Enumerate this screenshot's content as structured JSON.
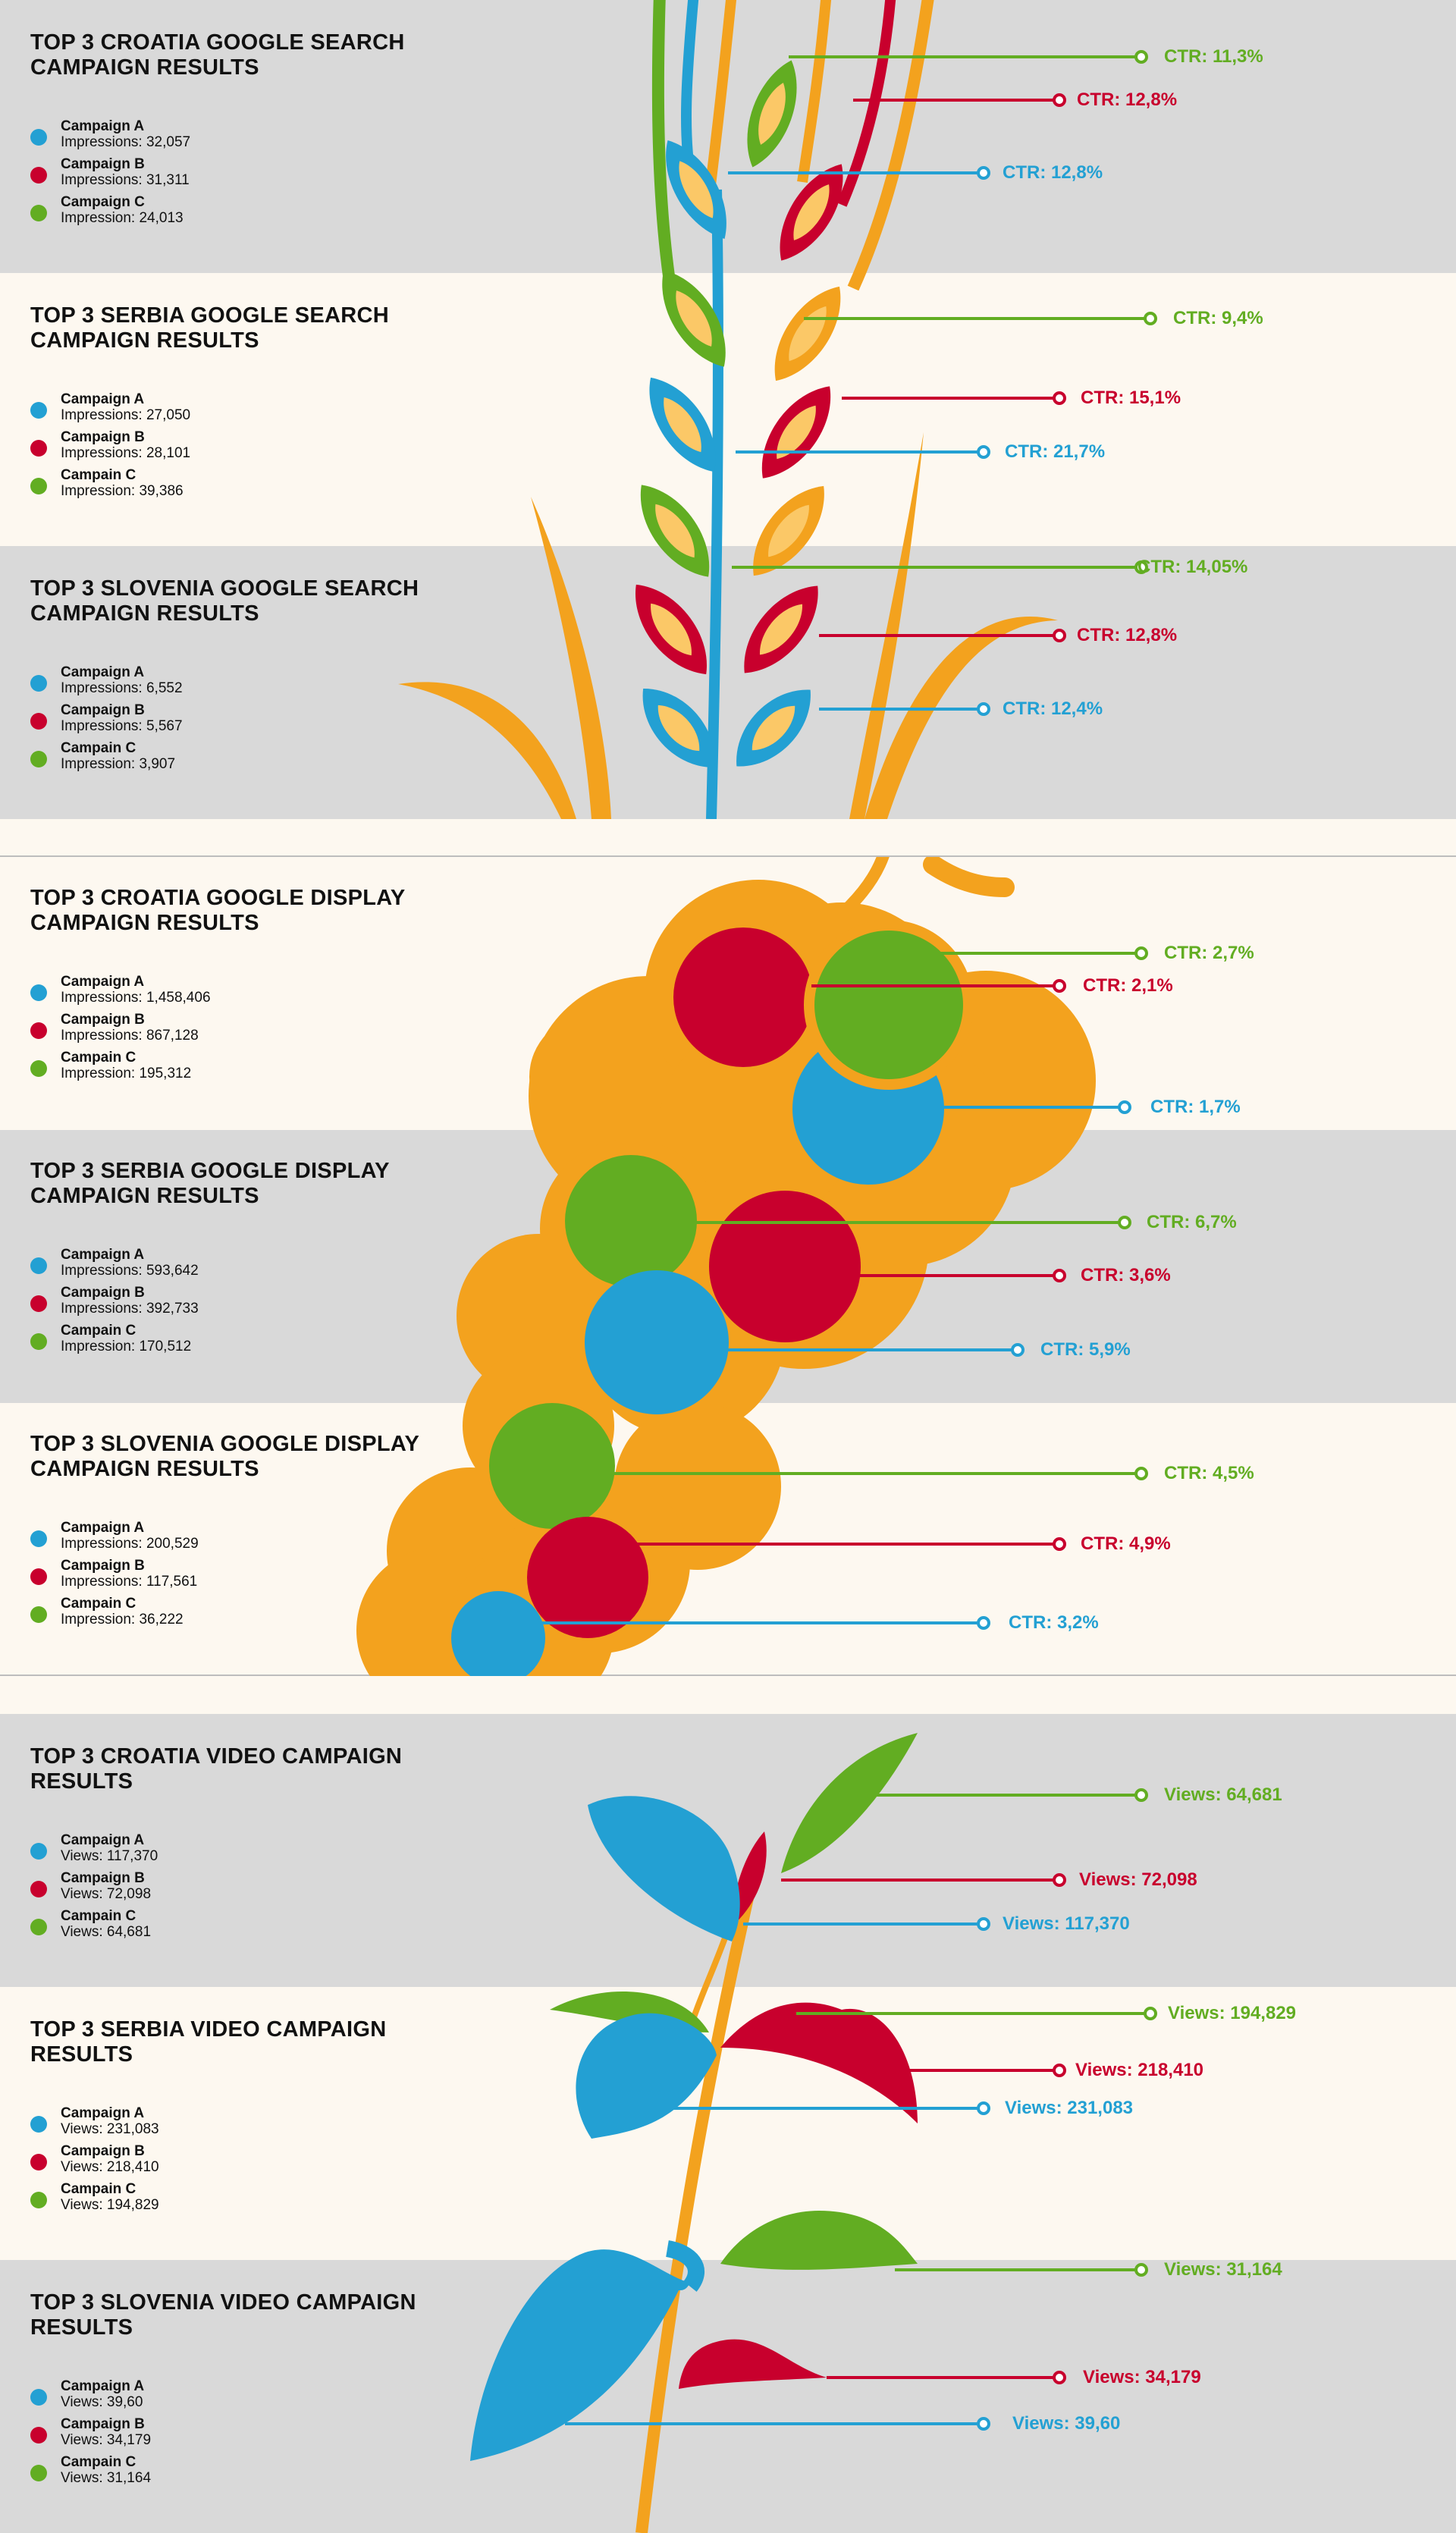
{
  "colors": {
    "blue": "#23a0d3",
    "red": "#c8002d",
    "green": "#62ad22",
    "orange": "#f3a21e",
    "light_orange": "#fbc867",
    "gray_band": "#d9d9d9",
    "cream_band": "#fdf8f0"
  },
  "sections": [
    {
      "id": "search",
      "illustration": "wheat",
      "panels": [
        {
          "title": "TOP 3 CROATIA GOOGLE SEARCH CAMPAIGN RESULTS",
          "campaigns": [
            {
              "name": "Campaign A",
              "value_label": "Impressions: 32,057",
              "color": "blue"
            },
            {
              "name": "Campaign B",
              "value_label": "Impressions: 31,311",
              "color": "red"
            },
            {
              "name": "Campaign C",
              "value_label": "Impression: 24,013",
              "color": "green"
            }
          ],
          "callouts": [
            {
              "label": "CTR: 11,3%",
              "color": "green"
            },
            {
              "label": "CTR: 12,8%",
              "color": "red"
            },
            {
              "label": "CTR: 12,8%",
              "color": "blue"
            }
          ]
        },
        {
          "title": "TOP 3 SERBIA GOOGLE SEARCH CAMPAIGN RESULTS",
          "campaigns": [
            {
              "name": "Campaign A",
              "value_label": "Impressions: 27,050",
              "color": "blue"
            },
            {
              "name": "Campaign B",
              "value_label": "Impressions: 28,101",
              "color": "red"
            },
            {
              "name": "Campain C",
              "value_label": "Impression: 39,386",
              "color": "green"
            }
          ],
          "callouts": [
            {
              "label": "CTR: 9,4%",
              "color": "green"
            },
            {
              "label": "CTR: 15,1%",
              "color": "red"
            },
            {
              "label": "CTR: 21,7%",
              "color": "blue"
            }
          ]
        },
        {
          "title": "TOP 3 SLOVENIA GOOGLE SEARCH CAMPAIGN RESULTS",
          "campaigns": [
            {
              "name": "Campaign A",
              "value_label": "Impressions: 6,552",
              "color": "blue"
            },
            {
              "name": "Campaign B",
              "value_label": "Impressions: 5,567",
              "color": "red"
            },
            {
              "name": "Campain C",
              "value_label": "Impression: 3,907",
              "color": "green"
            }
          ],
          "callouts": [
            {
              "label": "CTR: 14,05%",
              "color": "green"
            },
            {
              "label": "CTR: 12,8%",
              "color": "red"
            },
            {
              "label": "CTR: 12,4%",
              "color": "blue"
            }
          ]
        }
      ]
    },
    {
      "id": "display",
      "illustration": "grapes",
      "panels": [
        {
          "title": "TOP 3 CROATIA GOOGLE DISPLAY CAMPAIGN RESULTS",
          "campaigns": [
            {
              "name": "Campaign A",
              "value_label": "Impressions:  1,458,406",
              "color": "blue"
            },
            {
              "name": "Campaign B",
              "value_label": "Impressions: 867,128",
              "color": "red"
            },
            {
              "name": "Campain C",
              "value_label": "Impression: 195,312",
              "color": "green"
            }
          ],
          "callouts": [
            {
              "label": "CTR: 2,7%",
              "color": "green"
            },
            {
              "label": "CTR: 2,1%",
              "color": "red"
            },
            {
              "label": "CTR: 1,7%",
              "color": "blue"
            }
          ]
        },
        {
          "title": "TOP 3 SERBIA GOOGLE DISPLAY CAMPAIGN RESULTS",
          "campaigns": [
            {
              "name": "Campaign A",
              "value_label": "Impressions: 593,642",
              "color": "blue"
            },
            {
              "name": "Campaign B",
              "value_label": "Impressions: 392,733",
              "color": "red"
            },
            {
              "name": "Campain C",
              "value_label": "Impression:  170,512",
              "color": "green"
            }
          ],
          "callouts": [
            {
              "label": "CTR: 6,7%",
              "color": "green"
            },
            {
              "label": "CTR: 3,6%",
              "color": "red"
            },
            {
              "label": "CTR: 5,9%",
              "color": "blue"
            }
          ]
        },
        {
          "title": "TOP 3 SLOVENIA GOOGLE DISPLAY CAMPAIGN RESULTS",
          "campaigns": [
            {
              "name": "Campaign A",
              "value_label": "Impressions: 200,529",
              "color": "blue"
            },
            {
              "name": "Campaign B",
              "value_label": "Impressions: 117,561",
              "color": "red"
            },
            {
              "name": "Campain C",
              "value_label": "Impression: 36,222",
              "color": "green"
            }
          ],
          "callouts": [
            {
              "label": "CTR: 4,5%",
              "color": "green"
            },
            {
              "label": "CTR: 4,9%",
              "color": "red"
            },
            {
              "label": "CTR: 3,2%",
              "color": "blue"
            }
          ]
        }
      ]
    },
    {
      "id": "video",
      "illustration": "plant",
      "panels": [
        {
          "title": "TOP 3 CROATIA VIDEO CAMPAIGN RESULTS",
          "campaigns": [
            {
              "name": "Campaign A",
              "value_label": "Views: 117,370",
              "color": "blue"
            },
            {
              "name": "Campaign B",
              "value_label": "Views: 72,098",
              "color": "red"
            },
            {
              "name": "Campain C",
              "value_label": "Views: 64,681",
              "color": "green"
            }
          ],
          "callouts": [
            {
              "label": "Views: 64,681",
              "color": "green"
            },
            {
              "label": "Views: 72,098",
              "color": "red"
            },
            {
              "label": "Views: 117,370",
              "color": "blue"
            }
          ]
        },
        {
          "title": "TOP 3 SERBIA VIDEO CAMPAIGN RESULTS",
          "campaigns": [
            {
              "name": "Campaign A",
              "value_label": "Views: 231,083",
              "color": "blue"
            },
            {
              "name": "Campaign B",
              "value_label": "Views: 218,410",
              "color": "red"
            },
            {
              "name": "Campain C",
              "value_label": "Views: 194,829",
              "color": "green"
            }
          ],
          "callouts": [
            {
              "label": "Views: 194,829",
              "color": "green"
            },
            {
              "label": "Views: 218,410",
              "color": "red"
            },
            {
              "label": "Views: 231,083",
              "color": "blue"
            }
          ]
        },
        {
          "title": "TOP 3 SLOVENIA VIDEO CAMPAIGN RESULTS",
          "campaigns": [
            {
              "name": "Campaign A",
              "value_label": "Views: 39,60",
              "color": "blue"
            },
            {
              "name": "Campaign B",
              "value_label": "Views: 34,179",
              "color": "red"
            },
            {
              "name": "Campain C",
              "value_label": "Views: 31,164",
              "color": "green"
            }
          ],
          "callouts": [
            {
              "label": "Views: 31,164",
              "color": "green"
            },
            {
              "label": "Views: 34,179",
              "color": "red"
            },
            {
              "label": "Views: 39,60",
              "color": "blue"
            }
          ]
        }
      ]
    }
  ],
  "chart_data": [
    {
      "type": "table",
      "title": "TOP 3 CROATIA GOOGLE SEARCH CAMPAIGN RESULTS",
      "categories": [
        "Campaign A",
        "Campaign B",
        "Campaign C"
      ],
      "series": [
        {
          "name": "Impressions",
          "values": [
            32057,
            31311,
            24013
          ]
        },
        {
          "name": "CTR",
          "values": [
            12.8,
            12.8,
            11.3
          ]
        }
      ]
    },
    {
      "type": "table",
      "title": "TOP 3 SERBIA GOOGLE SEARCH CAMPAIGN RESULTS",
      "categories": [
        "Campaign A",
        "Campaign B",
        "Campain C"
      ],
      "series": [
        {
          "name": "Impressions",
          "values": [
            27050,
            28101,
            39386
          ]
        },
        {
          "name": "CTR",
          "values": [
            21.7,
            15.1,
            9.4
          ]
        }
      ]
    },
    {
      "type": "table",
      "title": "TOP 3 SLOVENIA GOOGLE SEARCH CAMPAIGN RESULTS",
      "categories": [
        "Campaign A",
        "Campaign B",
        "Campain C"
      ],
      "series": [
        {
          "name": "Impressions",
          "values": [
            6552,
            5567,
            3907
          ]
        },
        {
          "name": "CTR",
          "values": [
            12.4,
            12.8,
            14.05
          ]
        }
      ]
    },
    {
      "type": "table",
      "title": "TOP 3 CROATIA GOOGLE DISPLAY CAMPAIGN RESULTS",
      "categories": [
        "Campaign A",
        "Campaign B",
        "Campain C"
      ],
      "series": [
        {
          "name": "Impressions",
          "values": [
            1458406,
            867128,
            195312
          ]
        },
        {
          "name": "CTR",
          "values": [
            1.7,
            2.1,
            2.7
          ]
        }
      ]
    },
    {
      "type": "table",
      "title": "TOP 3 SERBIA GOOGLE DISPLAY CAMPAIGN RESULTS",
      "categories": [
        "Campaign A",
        "Campaign B",
        "Campain C"
      ],
      "series": [
        {
          "name": "Impressions",
          "values": [
            593642,
            392733,
            170512
          ]
        },
        {
          "name": "CTR",
          "values": [
            5.9,
            3.6,
            6.7
          ]
        }
      ]
    },
    {
      "type": "table",
      "title": "TOP 3 SLOVENIA GOOGLE DISPLAY CAMPAIGN RESULTS",
      "categories": [
        "Campaign A",
        "Campaign B",
        "Campain C"
      ],
      "series": [
        {
          "name": "Impressions",
          "values": [
            200529,
            117561,
            36222
          ]
        },
        {
          "name": "CTR",
          "values": [
            3.2,
            4.9,
            4.5
          ]
        }
      ]
    },
    {
      "type": "table",
      "title": "TOP 3 CROATIA VIDEO CAMPAIGN RESULTS",
      "categories": [
        "Campaign A",
        "Campaign B",
        "Campain C"
      ],
      "series": [
        {
          "name": "Views",
          "values": [
            117370,
            72098,
            64681
          ]
        }
      ]
    },
    {
      "type": "table",
      "title": "TOP 3 SERBIA VIDEO CAMPAIGN RESULTS",
      "categories": [
        "Campaign A",
        "Campaign B",
        "Campain C"
      ],
      "series": [
        {
          "name": "Views",
          "values": [
            231083,
            218410,
            194829
          ]
        }
      ]
    },
    {
      "type": "table",
      "title": "TOP 3 SLOVENIA VIDEO CAMPAIGN RESULTS",
      "categories": [
        "Campaign A",
        "Campaign B",
        "Campain C"
      ],
      "series": [
        {
          "name": "Views",
          "values": [
            3960,
            34179,
            31164
          ]
        }
      ]
    }
  ]
}
